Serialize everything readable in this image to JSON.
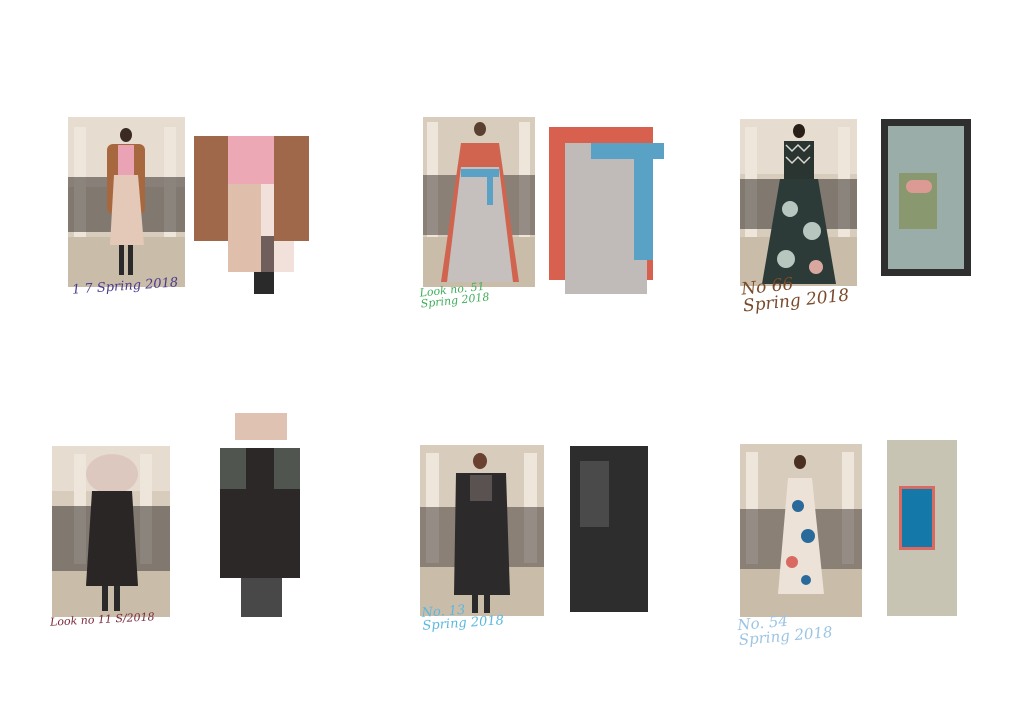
{
  "looks": [
    {
      "note_lines": [
        "1 7 Spring 2018"
      ],
      "note_color": "#4a3a8c",
      "palette": [
        "#a0684a",
        "#eca8b4",
        "#dfbfac",
        "#f1e1da",
        "#6f5e5b",
        "#2a2a2a"
      ]
    },
    {
      "note_lines": [
        "Look no. 51",
        "Spring 2018"
      ],
      "note_color": "#3fae5a",
      "palette": [
        "#d7604f",
        "#c0bbb8",
        "#5aa2c5"
      ]
    },
    {
      "note_lines": [
        "No 66",
        "Spring 2018"
      ],
      "note_color": "#7a4a2a",
      "palette": [
        "#2f2f2f",
        "#9aada8",
        "#8a9870",
        "#dc9a95"
      ]
    },
    {
      "note_lines": [
        "Look no 11 S/2018"
      ],
      "note_color": "#7a2a3a",
      "palette": [
        "#dfc2b2",
        "#505550",
        "#2d2828",
        "#484848"
      ]
    },
    {
      "note_lines": [
        "No. 13",
        "Spring 2018"
      ],
      "note_color": "#5ab8e0",
      "palette": [
        "#2d2d2d",
        "#4a4a4a"
      ]
    },
    {
      "note_lines": [
        "No. 54",
        "Spring 2018"
      ],
      "note_color": "#9cc4e4",
      "palette": [
        "#c8c4b4",
        "#d86a62",
        "#1479a8"
      ]
    }
  ]
}
